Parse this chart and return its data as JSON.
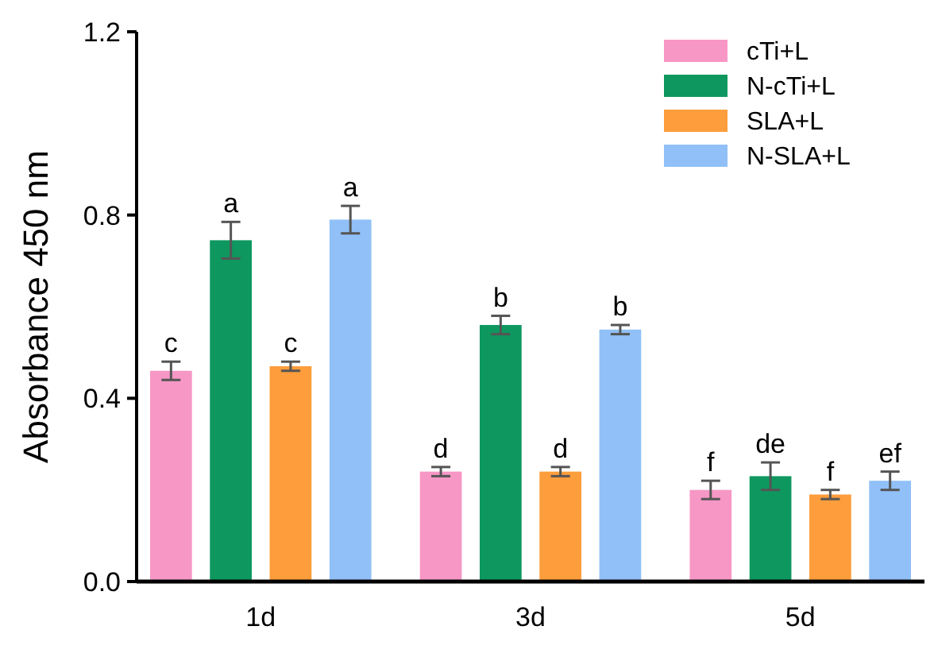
{
  "chart_data": {
    "type": "bar",
    "ylabel": "Absorbance 450 nm",
    "categories": [
      "1d",
      "3d",
      "5d"
    ],
    "series": [
      {
        "name": "cTi+L",
        "color": "#f797c6",
        "values": [
          0.46,
          0.24,
          0.2
        ],
        "errors": [
          0.02,
          0.01,
          0.02
        ],
        "value_labels": [
          "c",
          "d",
          "f"
        ]
      },
      {
        "name": "N-cTi+L",
        "color": "#0e975f",
        "values": [
          0.745,
          0.56,
          0.23
        ],
        "errors": [
          0.04,
          0.02,
          0.03
        ],
        "value_labels": [
          "a",
          "b",
          "de"
        ]
      },
      {
        "name": "SLA+L",
        "color": "#fd9d3b",
        "values": [
          0.47,
          0.24,
          0.19
        ],
        "errors": [
          0.01,
          0.01,
          0.01
        ],
        "value_labels": [
          "c",
          "d",
          "f"
        ]
      },
      {
        "name": "N-SLA+L",
        "color": "#90c0f7",
        "values": [
          0.79,
          0.55,
          0.22
        ],
        "errors": [
          0.03,
          0.01,
          0.02
        ],
        "value_labels": [
          "a",
          "b",
          "ef"
        ]
      }
    ],
    "ylim": [
      0,
      1.2
    ],
    "yticks": [
      {
        "value": 0,
        "label": "0.0"
      },
      0.4,
      0.8,
      1.2
    ],
    "legend": "top right"
  }
}
